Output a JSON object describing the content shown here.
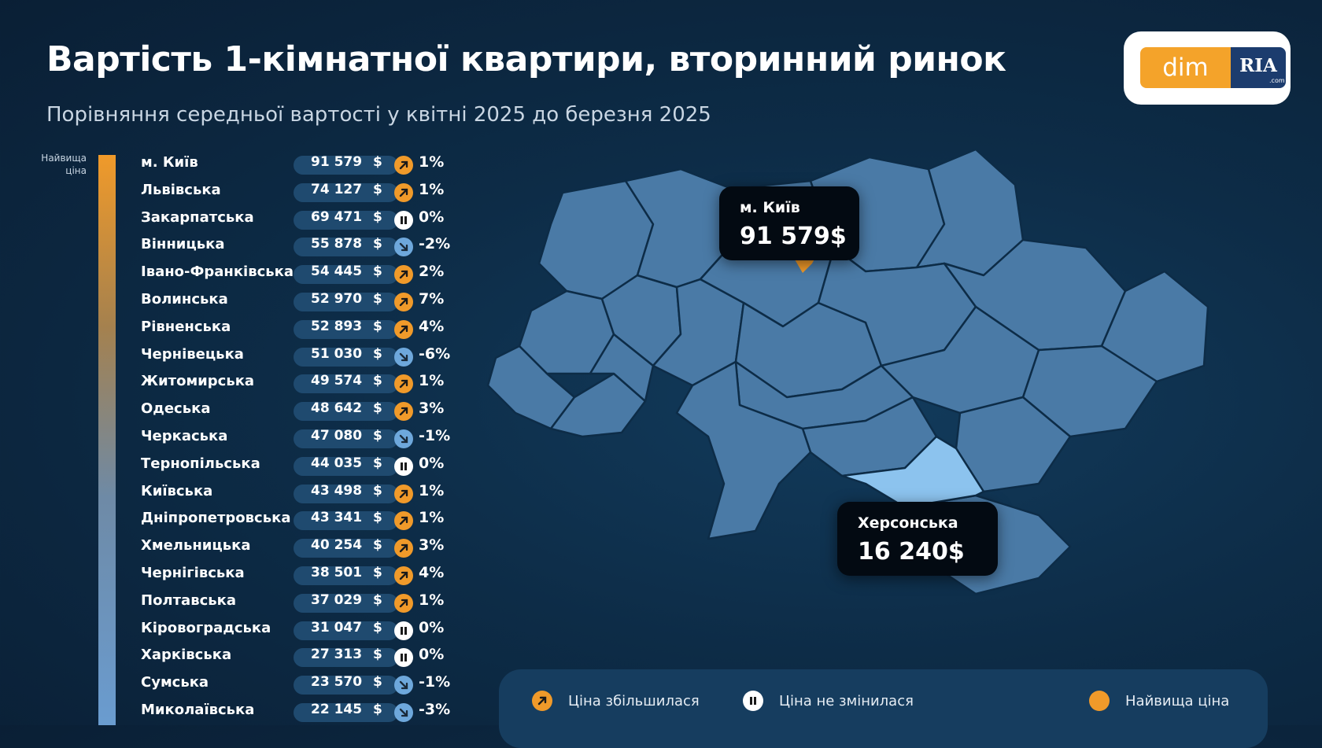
{
  "header": {
    "title": "Вартість 1-кімнатної квартири, вторинний ринок",
    "subtitle": "Порівняння середньої вартості у квітні 2025 до березня 2025"
  },
  "logo": {
    "part1": "dim",
    "part2": "RIA",
    "part3": ".com"
  },
  "scale": {
    "top_label": "Найвища ціна"
  },
  "colors": {
    "increase": "#f09a2a",
    "decrease": "#6ea8dc",
    "nochange": "#ffffff",
    "map_region": "#4a7aa6",
    "highlight_low": "#8cc3ee",
    "highlight_high": "#f09a2a"
  },
  "chart_data": {
    "type": "table",
    "currency": "$",
    "rows": [
      {
        "region": "м. Київ",
        "price": "91 579",
        "change": "1%",
        "trend": "up"
      },
      {
        "region": "Львівська",
        "price": "74 127",
        "change": "1%",
        "trend": "up"
      },
      {
        "region": "Закарпатська",
        "price": "69 471",
        "change": "0%",
        "trend": "flat"
      },
      {
        "region": "Вінницька",
        "price": "55 878",
        "change": "-2%",
        "trend": "down"
      },
      {
        "region": "Івано-Франківська",
        "price": "54 445",
        "change": "2%",
        "trend": "up"
      },
      {
        "region": "Волинська",
        "price": "52 970",
        "change": "7%",
        "trend": "up"
      },
      {
        "region": "Рівненська",
        "price": "52 893",
        "change": "4%",
        "trend": "up"
      },
      {
        "region": "Чернівецька",
        "price": "51 030",
        "change": "-6%",
        "trend": "down"
      },
      {
        "region": "Житомирська",
        "price": "49 574",
        "change": "1%",
        "trend": "up"
      },
      {
        "region": "Одеська",
        "price": "48 642",
        "change": "3%",
        "trend": "up"
      },
      {
        "region": "Черкаська",
        "price": "47 080",
        "change": "-1%",
        "trend": "down"
      },
      {
        "region": "Тернопільська",
        "price": "44 035",
        "change": "0%",
        "trend": "flat"
      },
      {
        "region": "Київська",
        "price": "43 498",
        "change": "1%",
        "trend": "up"
      },
      {
        "region": "Дніпропетровська",
        "price": "43 341",
        "change": "1%",
        "trend": "up"
      },
      {
        "region": "Хмельницька",
        "price": "40 254",
        "change": "3%",
        "trend": "up"
      },
      {
        "region": "Чернігівська",
        "price": "38 501",
        "change": "4%",
        "trend": "up"
      },
      {
        "region": "Полтавська",
        "price": "37 029",
        "change": "1%",
        "trend": "up"
      },
      {
        "region": "Кіровоградська",
        "price": "31 047",
        "change": "0%",
        "trend": "flat"
      },
      {
        "region": "Харківська",
        "price": "27 313",
        "change": "0%",
        "trend": "flat"
      },
      {
        "region": "Сумська",
        "price": "23 570",
        "change": "-1%",
        "trend": "down"
      },
      {
        "region": "Миколаївська",
        "price": "22 145",
        "change": "-3%",
        "trend": "down"
      }
    ]
  },
  "map": {
    "callouts": [
      {
        "name": "м. Київ",
        "value": "91 579$"
      },
      {
        "name": "Херсонська",
        "value": "16 240$"
      }
    ]
  },
  "legend": {
    "items": [
      {
        "label": "Ціна збільшилася",
        "icon": "arrow-up-right-icon"
      },
      {
        "label": "Ціна не змінилася",
        "icon": "pause-icon"
      },
      {
        "label": "Найвища ціна",
        "icon": "orange-dot-icon"
      }
    ]
  }
}
